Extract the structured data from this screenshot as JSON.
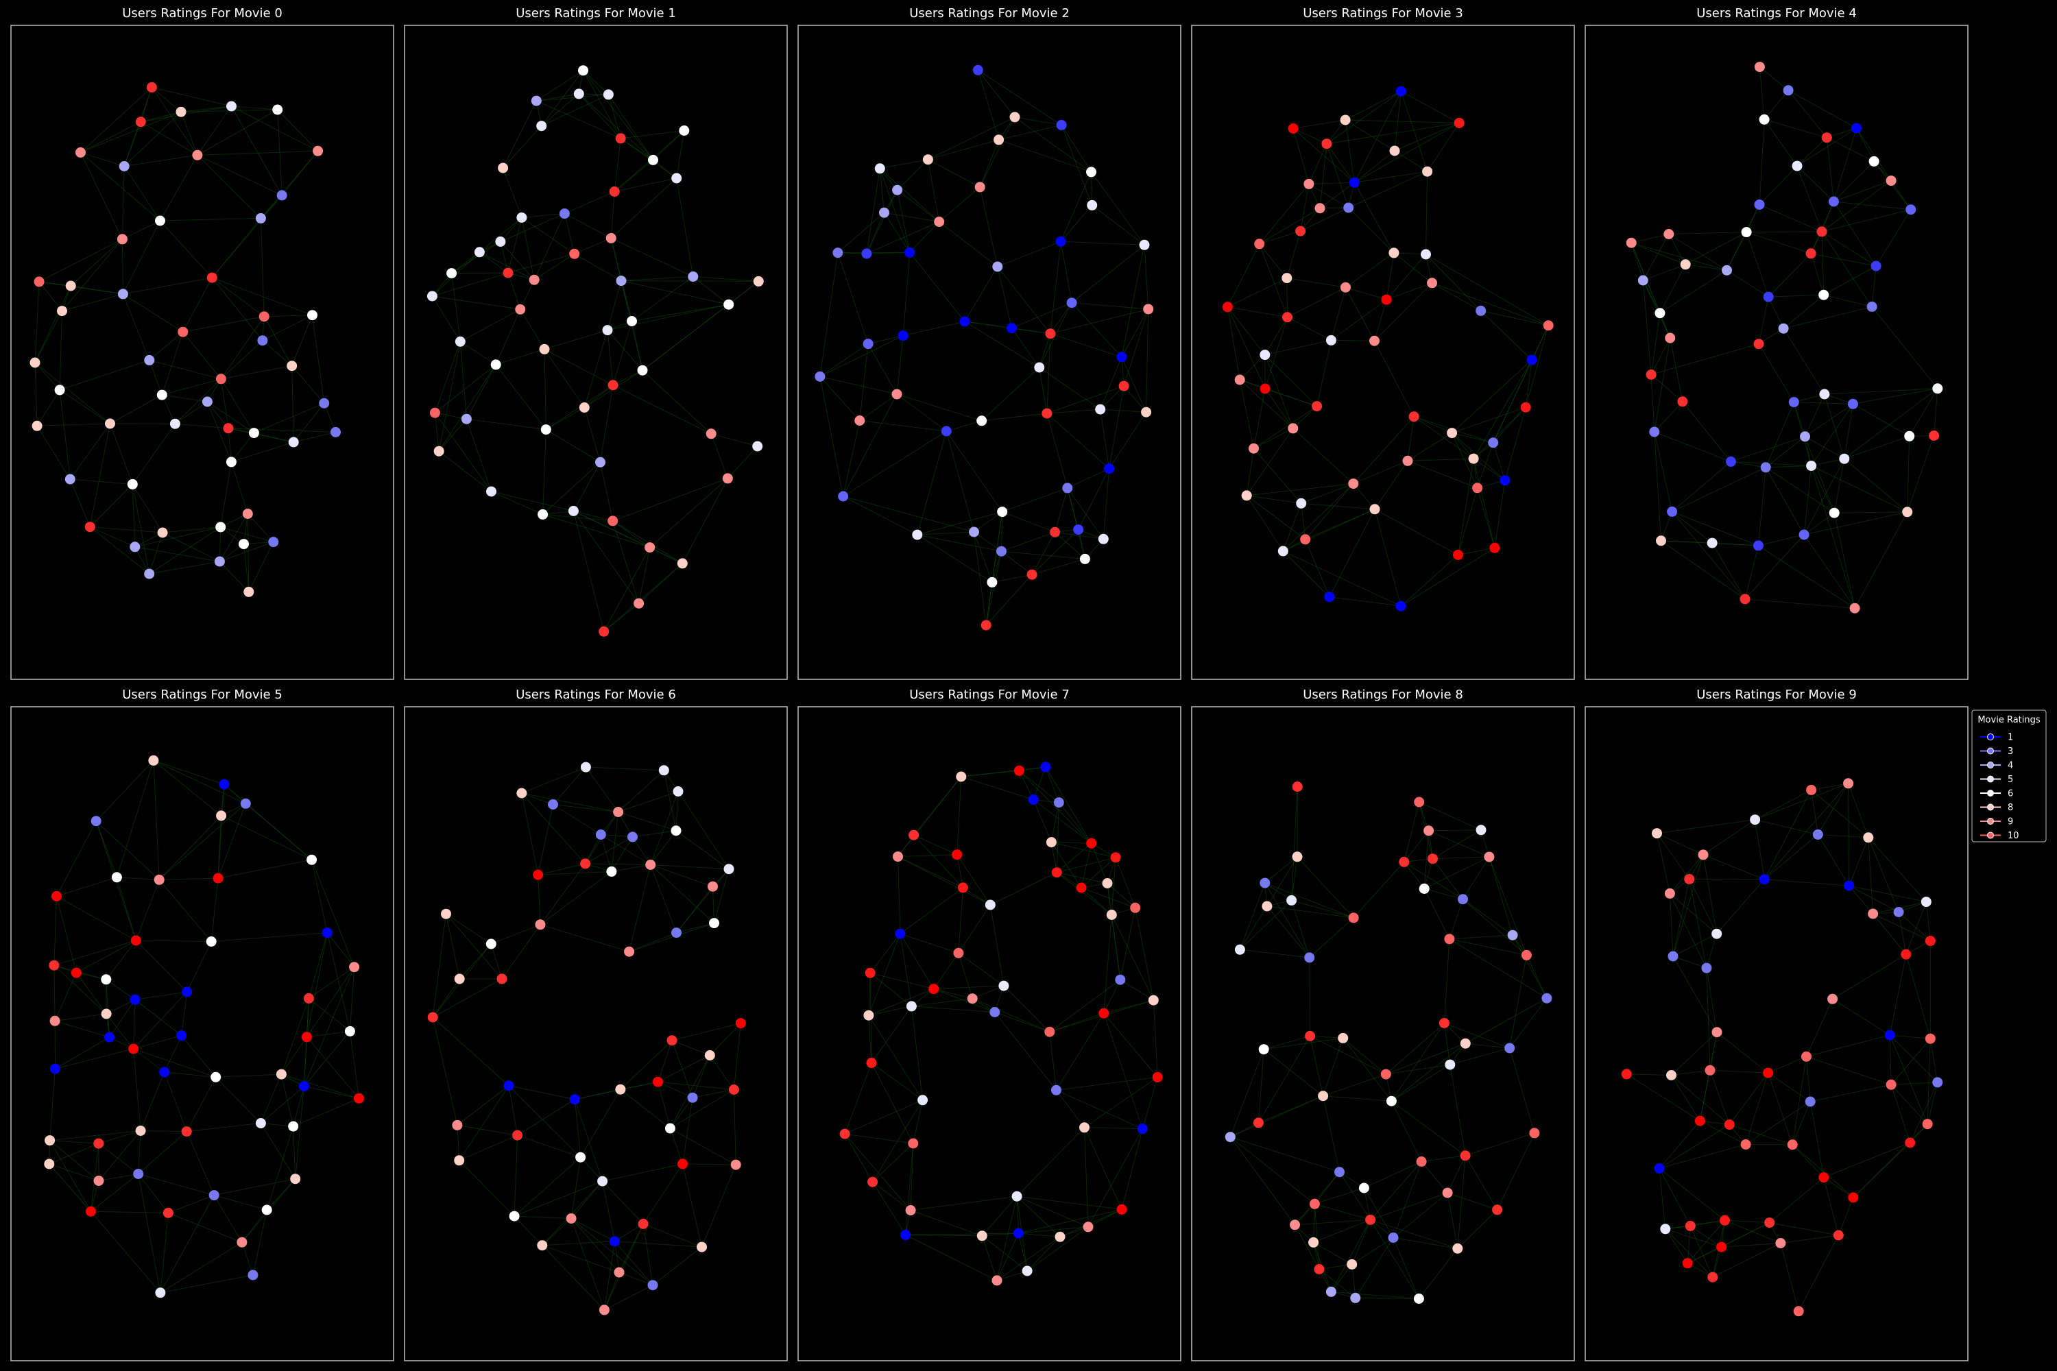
{
  "panels": [
    {
      "title": "Users Ratings For Movie 0"
    },
    {
      "title": "Users Ratings For Movie 1"
    },
    {
      "title": "Users Ratings For Movie 2"
    },
    {
      "title": "Users Ratings For Movie 3"
    },
    {
      "title": "Users Ratings For Movie 4"
    },
    {
      "title": "Users Ratings For Movie 5"
    },
    {
      "title": "Users Ratings For Movie 6"
    },
    {
      "title": "Users Ratings For Movie 7"
    },
    {
      "title": "Users Ratings For Movie 8"
    },
    {
      "title": "Users Ratings For Movie 9"
    }
  ],
  "legend": {
    "title": "Movie Ratings",
    "entries": [
      {
        "label": "1",
        "color": "#0000ff"
      },
      {
        "label": "3",
        "color": "#7878f0"
      },
      {
        "label": "4",
        "color": "#a8a8f5"
      },
      {
        "label": "5",
        "color": "#e8e8ff"
      },
      {
        "label": "6",
        "color": "#ffffff"
      },
      {
        "label": "8",
        "color": "#ffd2c8"
      },
      {
        "label": "9",
        "color": "#ff8c8c"
      },
      {
        "label": "10",
        "color": "#ff6464"
      }
    ]
  },
  "colors": {
    "background": "#000000",
    "edge": "#0b4a0b",
    "frame": "#bdbdbd",
    "rating_red": "#ff0000"
  }
}
